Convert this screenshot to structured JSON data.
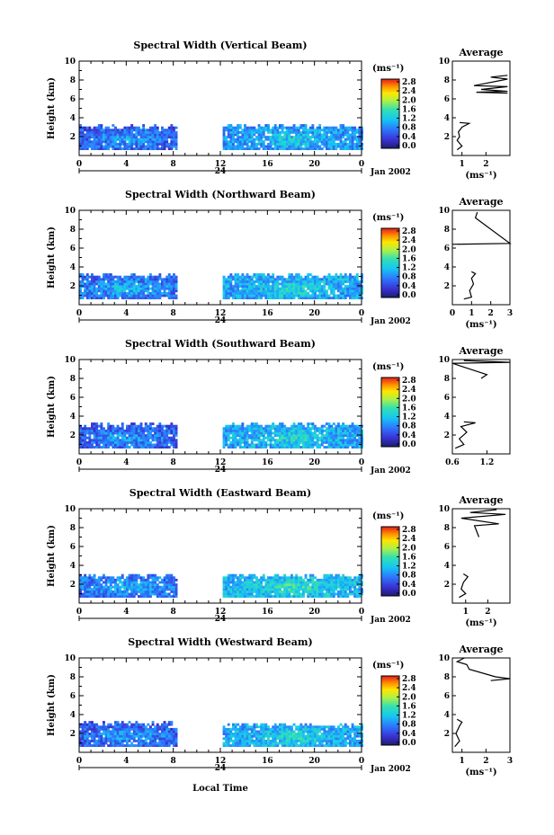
{
  "figure": {
    "xlabel": "Local Time",
    "date_label": "Jan 2002",
    "day_label": "24"
  },
  "chart_data": [
    {
      "type": "heatmap",
      "title": "Spectral Width (Vertical Beam)",
      "ylabel": "Height (km)",
      "xlim": [
        0,
        24
      ],
      "ylim": [
        0,
        10
      ],
      "x_ticks": [
        "0",
        "4",
        "8",
        "12",
        "16",
        "20",
        "0"
      ],
      "y_ticks": [
        "2",
        "4",
        "6",
        "8",
        "10"
      ],
      "colorbar": {
        "unit": "(ms⁻¹)",
        "range": [
          0,
          2.8
        ],
        "ticks": [
          "2.8",
          "2.4",
          "2.0",
          "1.6",
          "1.2",
          "0.8",
          "0.4",
          "0.0"
        ]
      },
      "coverage": [
        {
          "x": [
            0,
            8.2
          ],
          "y": [
            0.6,
            3.0
          ],
          "value": 0.6
        },
        {
          "x": [
            12.2,
            24
          ],
          "y": [
            0.6,
            3.0
          ],
          "value": 0.9
        }
      ],
      "average": {
        "title": "Average",
        "xlabel": "(ms⁻¹)",
        "xlim": [
          0.6,
          3.0
        ],
        "x_ticks": [
          "1",
          "2"
        ],
        "y_ticks": [
          "2",
          "4",
          "6",
          "8",
          "10"
        ],
        "profile": [
          [
            0.8,
            0.6
          ],
          [
            1.0,
            1.0
          ],
          [
            0.8,
            1.6
          ],
          [
            0.9,
            2.0
          ],
          [
            0.85,
            2.5
          ],
          [
            1.0,
            3.0
          ],
          [
            1.3,
            3.4
          ],
          [
            0.9,
            3.5
          ]
        ],
        "profile_upper": [
          [
            2.9,
            8.5
          ],
          [
            2.2,
            8.3
          ],
          [
            2.9,
            8.1
          ],
          [
            1.5,
            7.4
          ],
          [
            2.9,
            7.3
          ],
          [
            1.8,
            7.0
          ],
          [
            2.9,
            6.8
          ],
          [
            1.6,
            6.7
          ],
          [
            2.9,
            6.6
          ]
        ]
      }
    },
    {
      "type": "heatmap",
      "title": "Spectral Width (Northward Beam)",
      "ylabel": "Height (km)",
      "xlim": [
        0,
        24
      ],
      "ylim": [
        0,
        10
      ],
      "x_ticks": [
        "0",
        "4",
        "8",
        "12",
        "16",
        "20",
        "0"
      ],
      "y_ticks": [
        "2",
        "4",
        "6",
        "8",
        "10"
      ],
      "colorbar": {
        "unit": "(ms⁻¹)",
        "range": [
          0,
          2.8
        ],
        "ticks": [
          "2.8",
          "2.4",
          "2.0",
          "1.6",
          "1.2",
          "0.8",
          "0.4",
          "0.0"
        ]
      },
      "coverage": [
        {
          "x": [
            0,
            8.2
          ],
          "y": [
            0.6,
            3.0
          ],
          "value": 0.7
        },
        {
          "x": [
            12.2,
            24
          ],
          "y": [
            0.6,
            3.0
          ],
          "value": 1.0
        }
      ],
      "average": {
        "title": "Average",
        "xlabel": "(ms⁻¹)",
        "xlim": [
          0,
          3
        ],
        "x_ticks": [
          "0",
          "1",
          "2",
          "3"
        ],
        "y_ticks": [
          "2",
          "4",
          "6",
          "8",
          "10"
        ],
        "profile": [
          [
            0.6,
            0.6
          ],
          [
            1.0,
            0.8
          ],
          [
            0.9,
            1.5
          ],
          [
            1.1,
            2.2
          ],
          [
            1.0,
            2.8
          ],
          [
            1.2,
            3.3
          ],
          [
            1.0,
            3.5
          ]
        ],
        "profile_upper": [
          [
            0,
            6.4
          ],
          [
            3,
            6.5
          ],
          [
            1.2,
            9.2
          ],
          [
            1.3,
            9.8
          ]
        ]
      }
    },
    {
      "type": "heatmap",
      "title": "Spectral Width (Southward Beam)",
      "ylabel": "Height (km)",
      "xlim": [
        0,
        24
      ],
      "ylim": [
        0,
        10
      ],
      "x_ticks": [
        "0",
        "4",
        "8",
        "12",
        "16",
        "20",
        "0"
      ],
      "y_ticks": [
        "2",
        "4",
        "6",
        "8",
        "10"
      ],
      "colorbar": {
        "unit": "(ms⁻¹)",
        "range": [
          0,
          2.8
        ],
        "ticks": [
          "2.8",
          "2.4",
          "2.0",
          "1.6",
          "1.2",
          "0.8",
          "0.4",
          "0.0"
        ]
      },
      "coverage": [
        {
          "x": [
            0,
            8.2
          ],
          "y": [
            0.6,
            3.0
          ],
          "value": 0.6
        },
        {
          "x": [
            12.2,
            24
          ],
          "y": [
            0.6,
            3.0
          ],
          "value": 1.0
        }
      ],
      "average": {
        "title": "Average",
        "xlabel": "",
        "xlim": [
          0.6,
          1.6
        ],
        "x_ticks": [
          "0.6",
          "1.2"
        ],
        "y_ticks": [
          "2",
          "4",
          "6",
          "8",
          "10"
        ],
        "profile": [
          [
            0.65,
            0.6
          ],
          [
            0.8,
            1.0
          ],
          [
            0.72,
            1.6
          ],
          [
            0.85,
            2.3
          ],
          [
            0.75,
            2.9
          ],
          [
            1.0,
            3.3
          ],
          [
            0.8,
            3.4
          ]
        ],
        "profile_upper": [
          [
            1.1,
            8.0
          ],
          [
            1.2,
            8.4
          ],
          [
            0.6,
            9.6
          ],
          [
            1.6,
            9.7
          ],
          [
            0.8,
            9.9
          ]
        ]
      }
    },
    {
      "type": "heatmap",
      "title": "Spectral Width (Eastward Beam)",
      "ylabel": "Height (km)",
      "xlim": [
        0,
        24
      ],
      "ylim": [
        0,
        10
      ],
      "x_ticks": [
        "0",
        "4",
        "8",
        "12",
        "16",
        "20",
        "0"
      ],
      "y_ticks": [
        "2",
        "4",
        "6",
        "8",
        "10"
      ],
      "colorbar": {
        "unit": "(ms⁻¹)",
        "range": [
          0,
          2.8
        ],
        "ticks": [
          "2.8",
          "2.4",
          "2.0",
          "1.6",
          "1.2",
          "0.8",
          "0.4",
          "0.0"
        ]
      },
      "coverage": [
        {
          "x": [
            0,
            8.2
          ],
          "y": [
            0.6,
            2.8
          ],
          "value": 0.7
        },
        {
          "x": [
            12.2,
            24
          ],
          "y": [
            0.6,
            2.8
          ],
          "value": 1.1
        }
      ],
      "average": {
        "title": "Average",
        "xlabel": "(ms⁻¹)",
        "xlim": [
          0.4,
          3.0
        ],
        "x_ticks": [
          "1",
          "2"
        ],
        "y_ticks": [
          "2",
          "4",
          "6",
          "8",
          "10"
        ],
        "profile": [
          [
            0.7,
            0.6
          ],
          [
            1.0,
            1.0
          ],
          [
            0.8,
            1.5
          ],
          [
            0.9,
            2.2
          ],
          [
            1.1,
            2.8
          ],
          [
            0.9,
            3.1
          ]
        ],
        "profile_upper": [
          [
            1.6,
            7.0
          ],
          [
            1.4,
            8.2
          ],
          [
            2.5,
            8.4
          ],
          [
            0.8,
            9.0
          ],
          [
            2.8,
            9.4
          ],
          [
            1.2,
            9.6
          ],
          [
            2.4,
            9.9
          ]
        ]
      }
    },
    {
      "type": "heatmap",
      "title": "Spectral Width (Westward Beam)",
      "ylabel": "Height (km)",
      "xlim": [
        0,
        24
      ],
      "ylim": [
        0,
        10
      ],
      "x_ticks": [
        "0",
        "4",
        "8",
        "12",
        "16",
        "20",
        "0"
      ],
      "y_ticks": [
        "2",
        "4",
        "6",
        "8",
        "10"
      ],
      "colorbar": {
        "unit": "(ms⁻¹)",
        "range": [
          0,
          2.8
        ],
        "ticks": [
          "2.8",
          "2.4",
          "2.0",
          "1.6",
          "1.2",
          "0.8",
          "0.4",
          "0.0"
        ]
      },
      "coverage": [
        {
          "x": [
            0,
            8.2
          ],
          "y": [
            0.6,
            3.0
          ],
          "value": 0.6
        },
        {
          "x": [
            12.2,
            24
          ],
          "y": [
            0.6,
            2.8
          ],
          "value": 1.0
        }
      ],
      "average": {
        "title": "Average",
        "xlabel": "(ms⁻¹)",
        "xlim": [
          0.6,
          3.0
        ],
        "x_ticks": [
          "1",
          "2",
          "3"
        ],
        "y_ticks": [
          "2",
          "4",
          "6",
          "8",
          "10"
        ],
        "profile": [
          [
            0.7,
            0.6
          ],
          [
            0.9,
            1.2
          ],
          [
            0.75,
            2.0
          ],
          [
            0.9,
            2.8
          ],
          [
            1.0,
            3.2
          ],
          [
            0.8,
            3.5
          ]
        ],
        "profile_upper": [
          [
            2.2,
            7.6
          ],
          [
            3.0,
            7.8
          ],
          [
            2.4,
            8.0
          ],
          [
            1.3,
            8.8
          ],
          [
            1.2,
            9.3
          ],
          [
            0.8,
            9.6
          ],
          [
            1.1,
            10
          ]
        ]
      }
    }
  ]
}
